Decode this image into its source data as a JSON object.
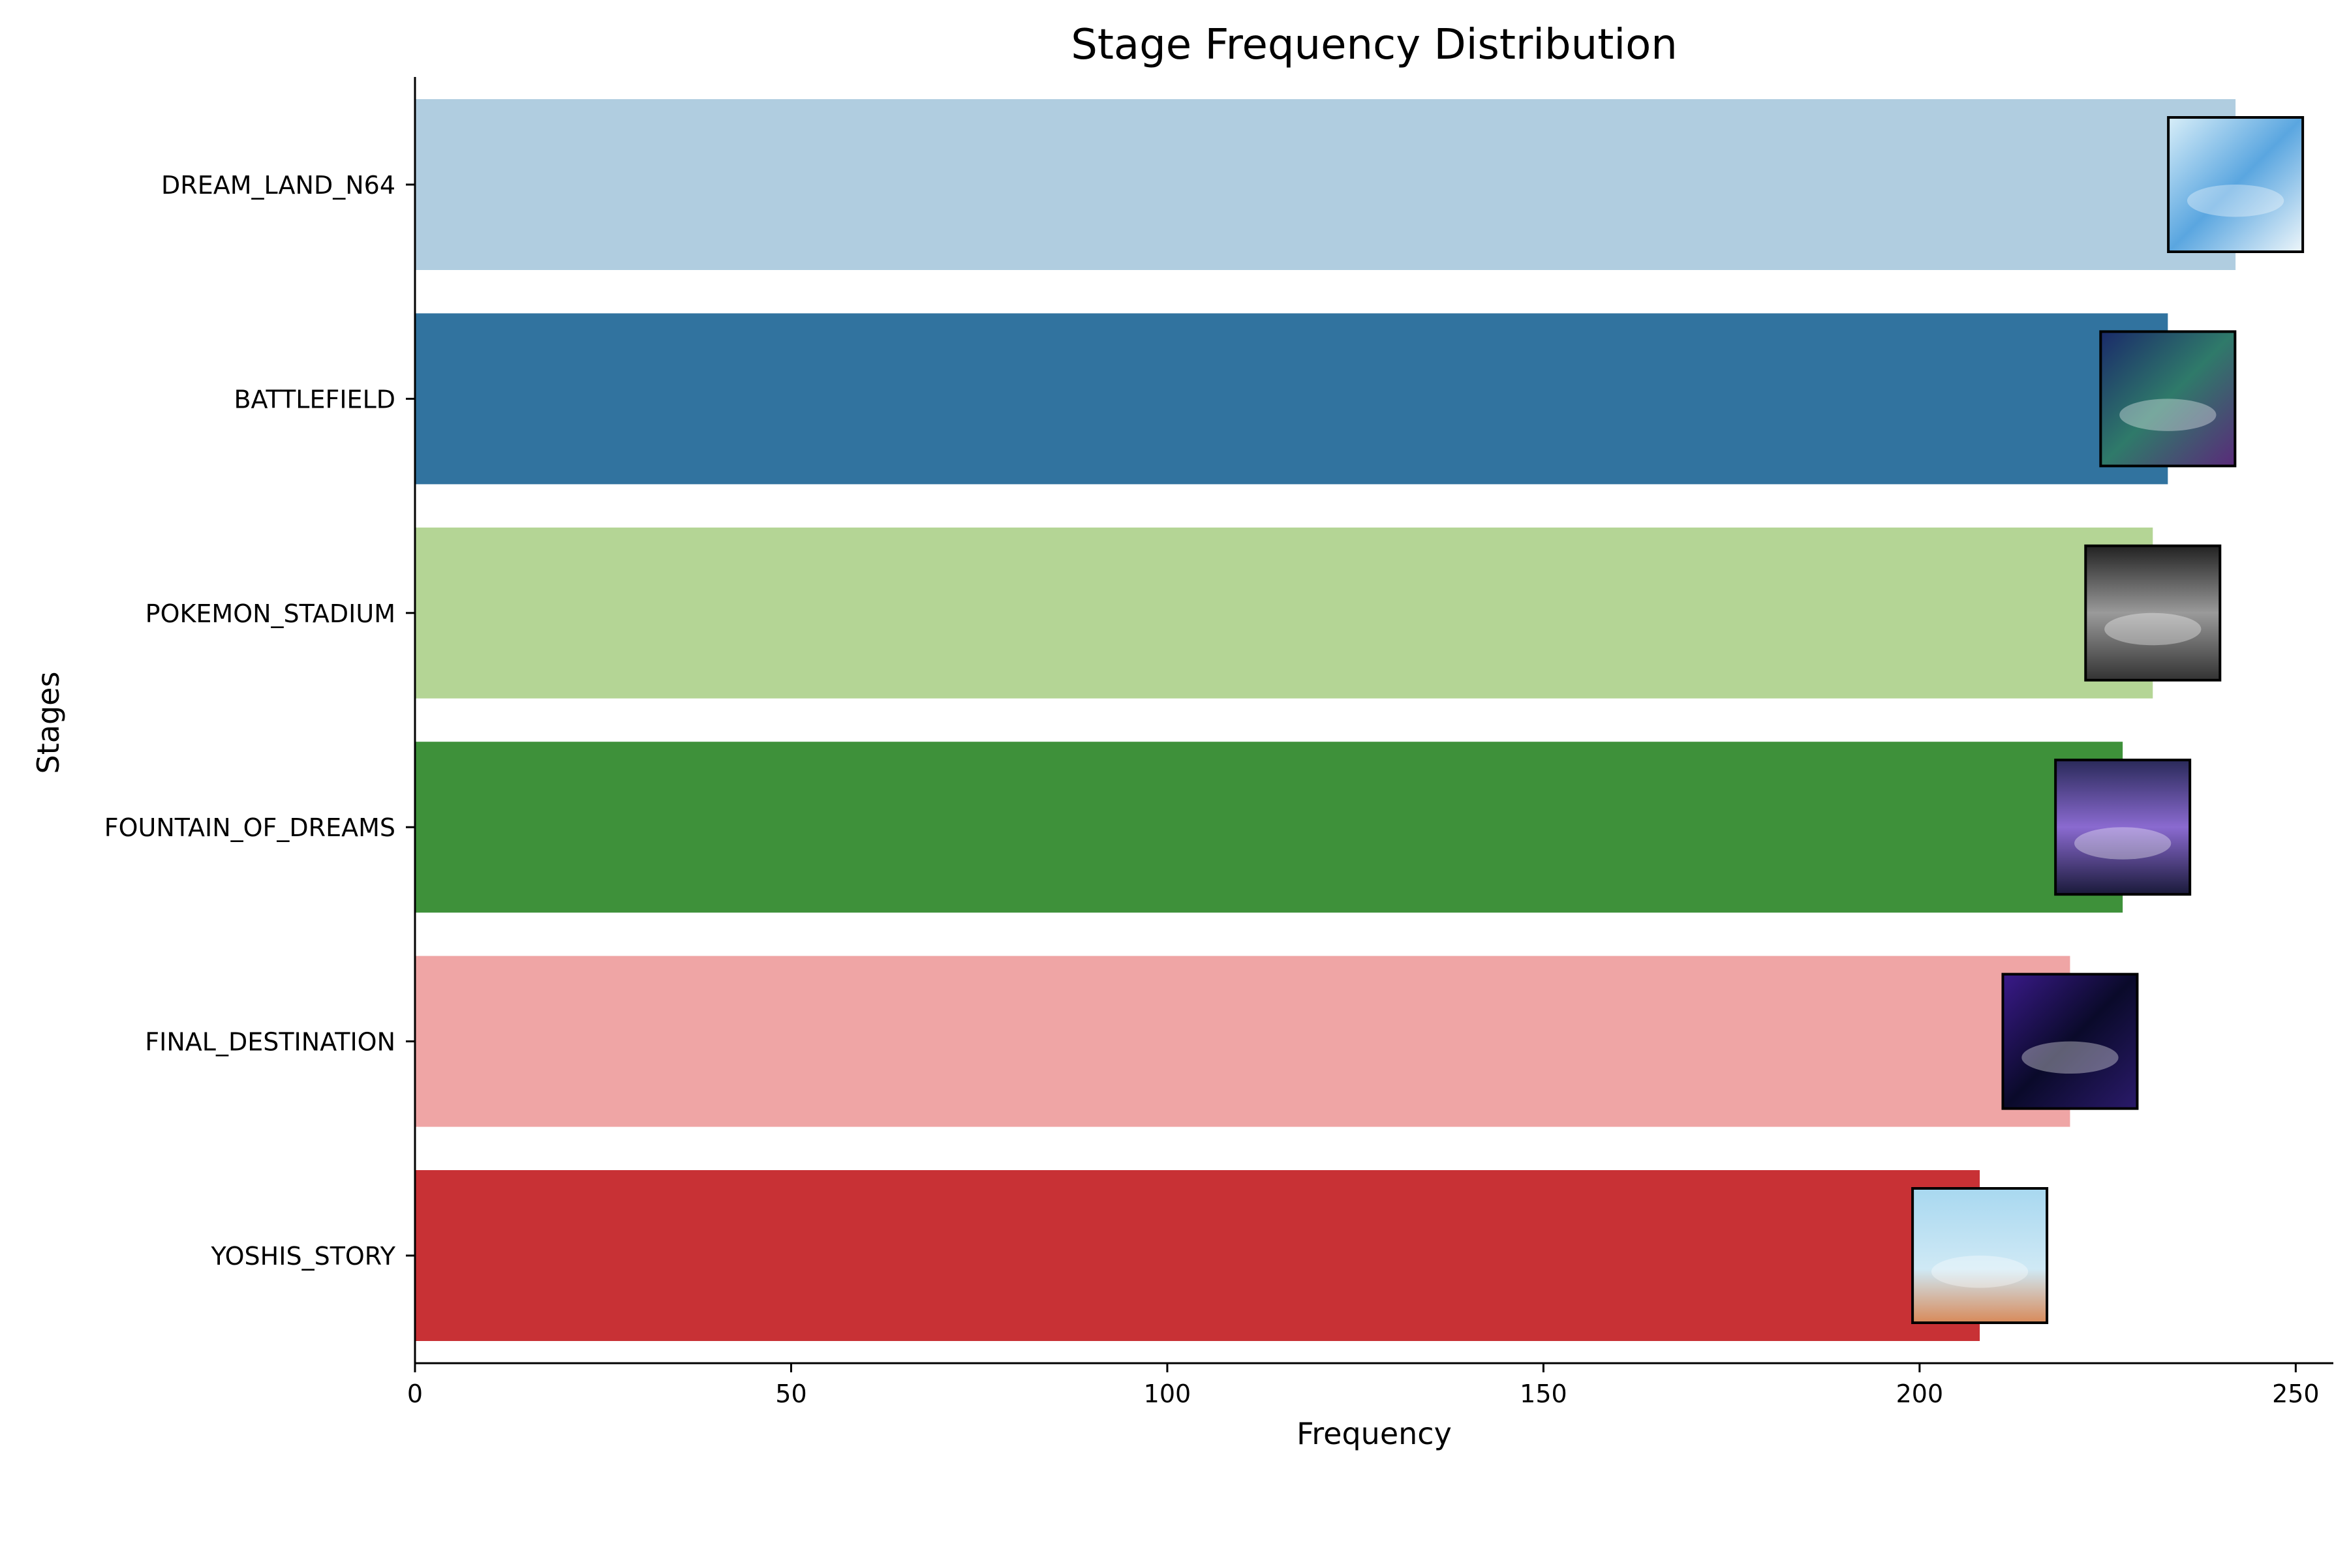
{
  "chart_data": {
    "type": "bar",
    "orientation": "horizontal",
    "title": "Stage Frequency Distribution",
    "xlabel": "Frequency",
    "ylabel": "Stages",
    "xlim": [
      0,
      255
    ],
    "xticks": [
      0,
      50,
      100,
      150,
      200,
      250
    ],
    "grid": false,
    "categories": [
      "DREAM_LAND_N64",
      "BATTLEFIELD",
      "POKEMON_STADIUM",
      "FOUNTAIN_OF_DREAMS",
      "FINAL_DESTINATION",
      "YOSHIS_STORY"
    ],
    "values": [
      242,
      233,
      231,
      227,
      220,
      208
    ],
    "colors": [
      "#b0cde0",
      "#31739f",
      "#b4d595",
      "#3e913a",
      "#efa5a5",
      "#c83135"
    ],
    "thumbnails": [
      "dream-land-n64-thumbnail",
      "battlefield-thumbnail",
      "pokemon-stadium-thumbnail",
      "fountain-of-dreams-thumbnail",
      "final-destination-thumbnail",
      "yoshis-story-thumbnail"
    ]
  }
}
